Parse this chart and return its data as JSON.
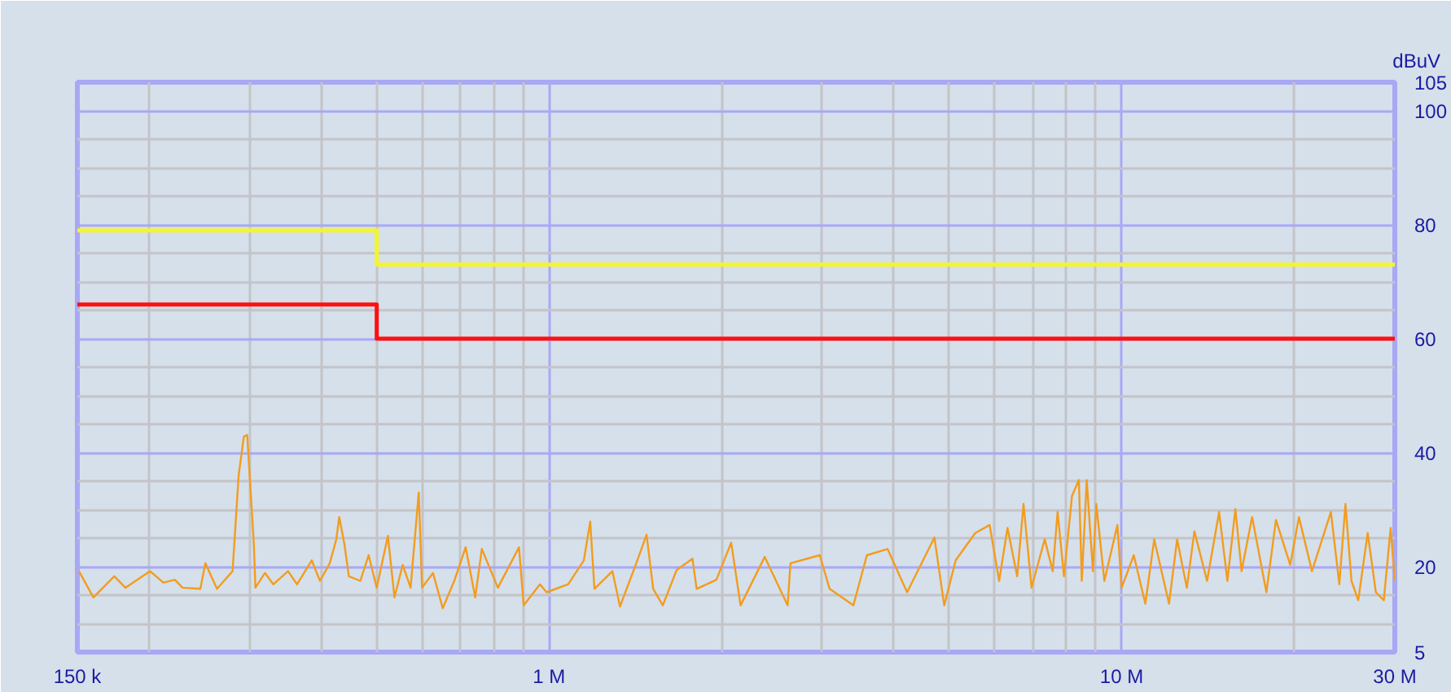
{
  "chart_data": {
    "type": "line",
    "ylabel": "dBuV",
    "log": "x",
    "grid": true,
    "marker": "none",
    "line_style": "solid",
    "xlim": [
      150000,
      30000000
    ],
    "ylim": [
      5,
      105
    ],
    "xticks": [
      {
        "value": 150000,
        "label": "150 k"
      },
      {
        "value": 200000,
        "label": null
      },
      {
        "value": 300000,
        "label": null
      },
      {
        "value": 400000,
        "label": null
      },
      {
        "value": 500000,
        "label": null
      },
      {
        "value": 600000,
        "label": null
      },
      {
        "value": 700000,
        "label": null
      },
      {
        "value": 800000,
        "label": null
      },
      {
        "value": 900000,
        "label": null
      },
      {
        "value": 1000000,
        "label": "1 M"
      },
      {
        "value": 2000000,
        "label": null
      },
      {
        "value": 3000000,
        "label": null
      },
      {
        "value": 4000000,
        "label": null
      },
      {
        "value": 5000000,
        "label": null
      },
      {
        "value": 6000000,
        "label": null
      },
      {
        "value": 7000000,
        "label": null
      },
      {
        "value": 8000000,
        "label": null
      },
      {
        "value": 9000000,
        "label": null
      },
      {
        "value": 10000000,
        "label": "10 M"
      },
      {
        "value": 20000000,
        "label": null
      },
      {
        "value": 30000000,
        "label": "30 M"
      }
    ],
    "yticks": [
      5,
      {
        "value": 10,
        "label": null
      },
      {
        "value": 15,
        "label": null
      },
      20,
      {
        "value": 25,
        "label": null
      },
      {
        "value": 30,
        "label": null
      },
      {
        "value": 35,
        "label": null
      },
      40,
      {
        "value": 45,
        "label": null
      },
      {
        "value": 50,
        "label": null
      },
      {
        "value": 55,
        "label": null
      },
      60,
      {
        "value": 65,
        "label": null
      },
      {
        "value": 70,
        "label": null
      },
      {
        "value": 75,
        "label": null
      },
      80,
      {
        "value": 85,
        "label": null
      },
      {
        "value": 90,
        "label": null
      },
      {
        "value": 95,
        "label": null
      },
      100,
      105
    ],
    "series": [
      {
        "type": "step",
        "color": "#f5f52a",
        "x": [
          150000,
          500000,
          30000000
        ],
        "values": [
          79,
          73,
          73
        ]
      },
      {
        "type": "step",
        "color": "#ff1010",
        "x": [
          150000,
          500000,
          30000000
        ],
        "values": [
          66,
          60,
          60
        ]
      },
      {
        "color": "#f39c1e",
        "x": [
          151000,
          160000,
          174000,
          182000,
          201000,
          212000,
          222000,
          229000,
          246000,
          251000,
          263000,
          280000,
          287000,
          293000,
          297000,
          305000,
          307000,
          319000,
          330000,
          350000,
          363000,
          385000,
          398000,
          414000,
          425000,
          430000,
          439000,
          447000,
          468000,
          484000,
          500000,
          523000,
          537000,
          555000,
          573000,
          592000,
          600000,
          627000,
          652000,
          683000,
          715000,
          743000,
          763000,
          814000,
          886000,
          903000,
          964000,
          990000,
          1080000,
          1150000,
          1180000,
          1200000,
          1290000,
          1330000,
          1420000,
          1480000,
          1520000,
          1580000,
          1670000,
          1780000,
          1810000,
          1960000,
          2080000,
          2160000,
          2380000,
          2610000,
          2640000,
          2970000,
          3090000,
          3400000,
          3590000,
          3900000,
          4220000,
          4710000,
          4900000,
          5130000,
          5550000,
          5880000,
          6110000,
          6320000,
          6570000,
          6740000,
          6960000,
          7340000,
          7580000,
          7730000,
          7930000,
          8190000,
          8420000,
          8520000,
          8690000,
          8910000,
          9030000,
          9330000,
          9830000,
          10000000,
          10500000,
          11000000,
          11400000,
          12100000,
          12500000,
          13000000,
          13400000,
          14100000,
          14800000,
          15300000,
          15800000,
          16200000,
          16900000,
          17900000,
          18600000,
          19700000,
          20400000,
          21500000,
          23200000,
          24000000,
          24600000,
          25200000,
          25900000,
          26900000,
          27800000,
          28700000,
          29500000,
          30000000
        ],
        "values": [
          19.2,
          14.6,
          18.3,
          16.3,
          19.2,
          17.2,
          17.7,
          16.3,
          16.1,
          20.6,
          16.1,
          19.2,
          36.1,
          42.8,
          43.1,
          24.0,
          16.3,
          18.9,
          16.9,
          19.2,
          16.9,
          21.1,
          17.5,
          20.6,
          24.8,
          28.7,
          24.0,
          18.3,
          17.5,
          22.0,
          16.3,
          25.4,
          14.6,
          20.3,
          16.3,
          33.0,
          16.3,
          18.9,
          12.7,
          17.5,
          23.4,
          14.6,
          23.1,
          16.3,
          23.4,
          13.2,
          16.9,
          15.5,
          16.9,
          21.1,
          27.9,
          16.1,
          19.2,
          13.0,
          20.6,
          25.6,
          16.1,
          13.2,
          19.4,
          21.4,
          16.1,
          17.7,
          24.2,
          13.2,
          21.7,
          13.2,
          20.6,
          22.0,
          16.1,
          13.2,
          22.0,
          23.1,
          15.5,
          25.1,
          13.2,
          21.1,
          25.9,
          27.3,
          17.5,
          26.8,
          18.3,
          31.0,
          16.3,
          24.8,
          19.2,
          29.6,
          18.3,
          32.4,
          35.2,
          17.5,
          35.2,
          19.2,
          31.0,
          17.5,
          27.3,
          16.3,
          22.0,
          13.5,
          24.8,
          13.5,
          24.8,
          16.3,
          26.2,
          17.5,
          29.6,
          17.5,
          30.1,
          19.2,
          28.7,
          15.5,
          28.2,
          20.3,
          28.7,
          19.2,
          29.6,
          16.9,
          31.0,
          17.5,
          14.1,
          25.9,
          15.5,
          14.1,
          26.8,
          17.5
        ]
      }
    ]
  }
}
